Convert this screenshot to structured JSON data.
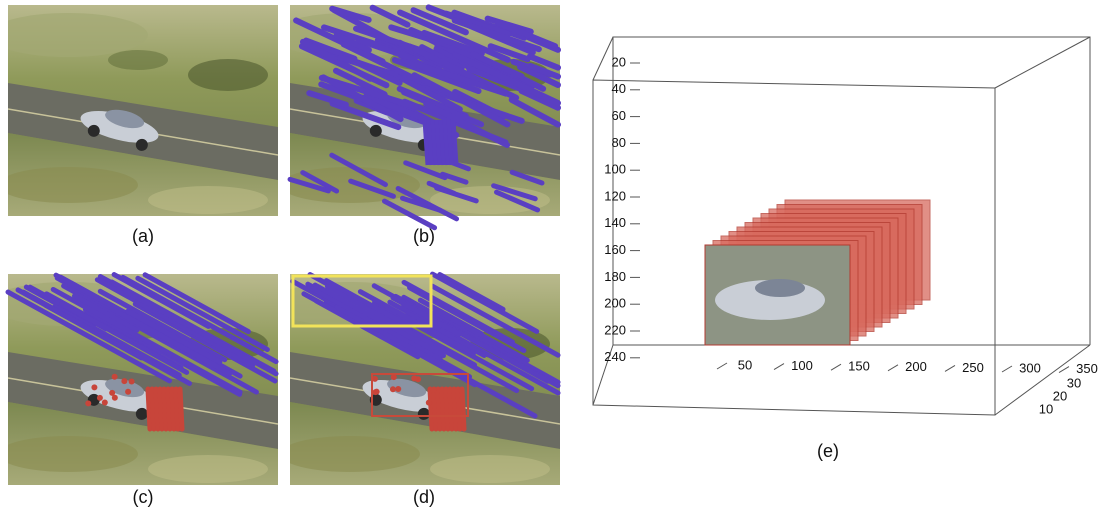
{
  "panels": [
    {
      "label": "(a)"
    },
    {
      "label": "(b)"
    },
    {
      "label": "(c)"
    },
    {
      "label": "(d)"
    }
  ],
  "plot": {
    "label": "(e)",
    "y_ticks": [
      20,
      40,
      60,
      80,
      100,
      120,
      140,
      160,
      180,
      200,
      220,
      240
    ],
    "x_ticks": [
      50,
      100,
      150,
      200,
      250,
      300,
      350
    ],
    "z_ticks": [
      10,
      20,
      30
    ]
  }
}
